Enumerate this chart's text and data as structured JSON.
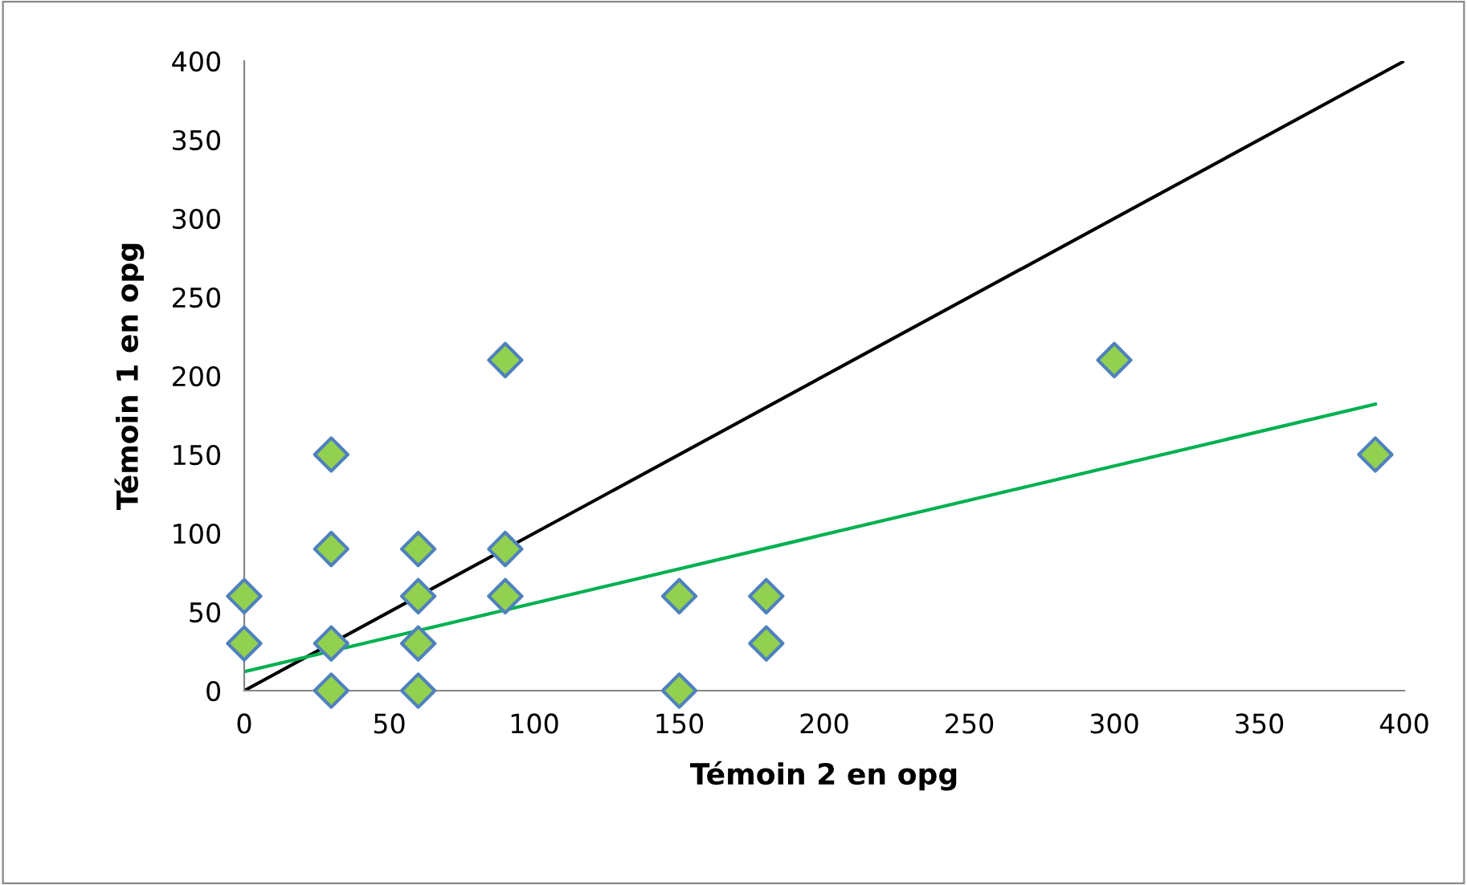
{
  "chart_data": {
    "type": "scatter",
    "xlabel": "Témoin 2 en opg",
    "ylabel": "Témoin 1 en opg",
    "xlim": [
      0,
      400
    ],
    "ylim": [
      0,
      400
    ],
    "xticks": [
      0,
      50,
      100,
      150,
      200,
      250,
      300,
      350,
      400
    ],
    "yticks": [
      0,
      50,
      100,
      150,
      200,
      250,
      300,
      350,
      400
    ],
    "grid": false,
    "legend": false,
    "series": [
      {
        "marker": "diamond",
        "color": "#92d050",
        "x": [
          0,
          0,
          30,
          30,
          30,
          30,
          60,
          60,
          60,
          60,
          90,
          90,
          90,
          150,
          150,
          180,
          180,
          300,
          390
        ],
        "values": [
          30,
          60,
          0,
          30,
          90,
          150,
          0,
          30,
          60,
          90,
          60,
          90,
          210,
          0,
          60,
          30,
          60,
          210,
          150
        ]
      },
      {
        "type": "line",
        "marker": "none",
        "color": "#000000",
        "x": [
          0,
          400
        ],
        "values": [
          0,
          400
        ]
      },
      {
        "type": "line",
        "marker": "none",
        "color": "#00b050",
        "x": [
          0,
          390
        ],
        "values": [
          12,
          182
        ]
      }
    ]
  }
}
